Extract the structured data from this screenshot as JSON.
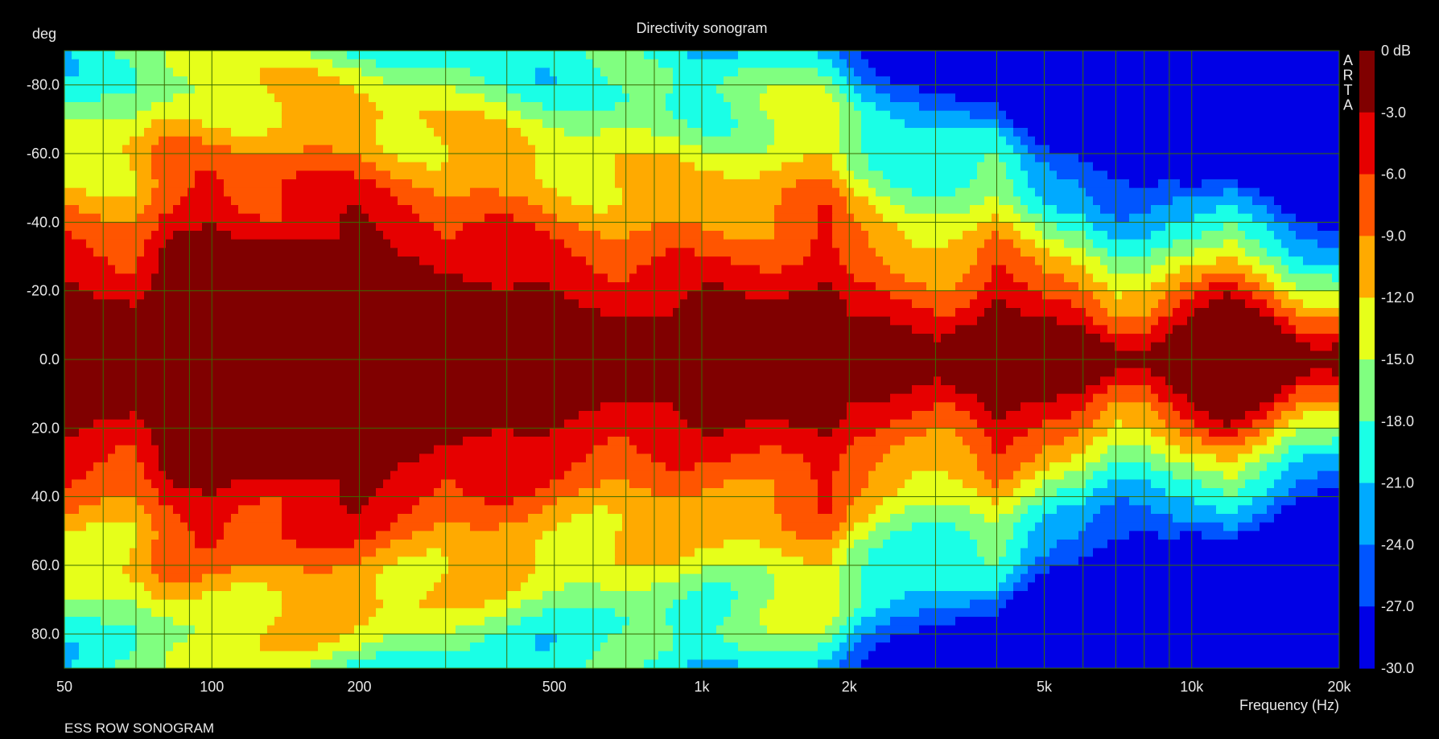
{
  "chart_data": {
    "type": "heatmap",
    "title": "Directivity sonogram",
    "xlabel": "Frequency (Hz)",
    "ylabel": "deg",
    "footer": "ESS ROW SONOGRAM",
    "watermark": "ARTA",
    "xscale": "log",
    "xlim": [
      50,
      20000
    ],
    "ylim": [
      -90,
      90
    ],
    "grid": true,
    "x_ticks": [
      {
        "value": 50,
        "label": "50"
      },
      {
        "value": 100,
        "label": "100"
      },
      {
        "value": 200,
        "label": "200"
      },
      {
        "value": 500,
        "label": "500"
      },
      {
        "value": 1000,
        "label": "1k"
      },
      {
        "value": 2000,
        "label": "2k"
      },
      {
        "value": 5000,
        "label": "5k"
      },
      {
        "value": 10000,
        "label": "10k"
      },
      {
        "value": 20000,
        "label": "20k"
      }
    ],
    "x_minor_grid": [
      60,
      70,
      80,
      90,
      300,
      400,
      600,
      700,
      800,
      900,
      3000,
      4000,
      6000,
      7000,
      8000,
      9000
    ],
    "y_ticks": [
      {
        "value": -80,
        "label": "-80.0"
      },
      {
        "value": -60,
        "label": "-60.0"
      },
      {
        "value": -40,
        "label": "-40.0"
      },
      {
        "value": -20,
        "label": "-20.0"
      },
      {
        "value": 0,
        "label": "0.0"
      },
      {
        "value": 20,
        "label": "20.0"
      },
      {
        "value": 40,
        "label": "40.0"
      },
      {
        "value": 60,
        "label": "60.0"
      },
      {
        "value": 80,
        "label": "80.0"
      }
    ],
    "colorbar": {
      "levels": [
        {
          "label": "0 dB",
          "color": "#800000"
        },
        {
          "label": "-3.0",
          "color": "#e60000"
        },
        {
          "label": "-6.0",
          "color": "#ff5500"
        },
        {
          "label": "-9.0",
          "color": "#ffaa00"
        },
        {
          "label": "-12.0",
          "color": "#e6ff1a"
        },
        {
          "label": "-15.0",
          "color": "#80ff80"
        },
        {
          "label": "-18.0",
          "color": "#1affe6"
        },
        {
          "label": "-21.0",
          "color": "#00aaff"
        },
        {
          "label": "-24.0",
          "color": "#0055ff"
        },
        {
          "label": "-27.0",
          "color": "#0000e6"
        },
        {
          "label": "-30.0",
          "color": null
        }
      ]
    },
    "beamwidth_profile_6dB": {
      "description_free": true,
      "freq": [
        50,
        60,
        70,
        80,
        100,
        150,
        200,
        250,
        300,
        400,
        500,
        600,
        700,
        800,
        1000,
        1300,
        1600,
        1800,
        2000,
        2300,
        2600,
        3000,
        3500,
        4000,
        4500,
        5000,
        6000,
        7000,
        8000,
        10000,
        12000,
        14000,
        17000,
        20000
      ],
      "half_angle_deg": [
        18,
        18,
        16,
        28,
        36,
        35,
        34,
        30,
        25,
        20,
        16,
        14,
        13,
        13,
        12,
        16,
        20,
        22,
        7,
        5,
        5,
        6,
        10,
        17,
        11,
        9,
        9,
        3,
        3,
        10,
        18,
        13,
        4,
        3
      ]
    }
  }
}
